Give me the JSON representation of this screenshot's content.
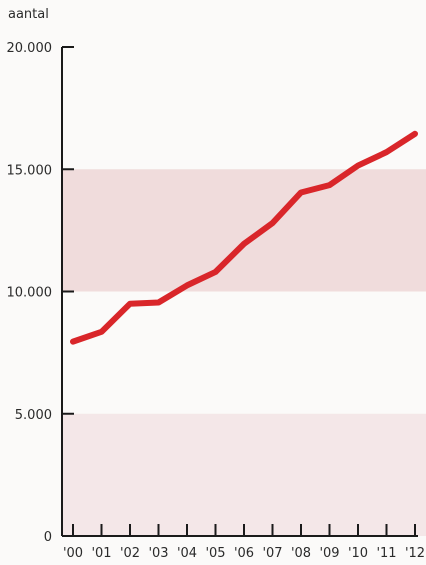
{
  "chart_data": {
    "type": "line",
    "title": "",
    "ylabel": "aantal",
    "xlabel": "",
    "x": [
      "'00",
      "'01",
      "'02",
      "'03",
      "'04",
      "'05",
      "'06",
      "'07",
      "'08",
      "'09",
      "'10",
      "'11",
      "'12"
    ],
    "series": [
      {
        "color": "#d9262a",
        "values": [
          7950,
          8350,
          9500,
          9550,
          10250,
          10800,
          11950,
          12800,
          14050,
          14350,
          15150,
          15700,
          16450
        ]
      }
    ],
    "ylim": [
      0,
      20000
    ],
    "yticks": [
      0,
      5000,
      10000,
      15000,
      20000
    ],
    "ytick_labels": [
      "0",
      "5.000",
      "10.000",
      "15.000",
      "20.000"
    ],
    "bands": [
      {
        "from": 10000,
        "to": 15000,
        "color": "#f0dcdc"
      },
      {
        "from": 0,
        "to": 5000,
        "color": "#f4e7e8"
      }
    ],
    "grid": false
  }
}
